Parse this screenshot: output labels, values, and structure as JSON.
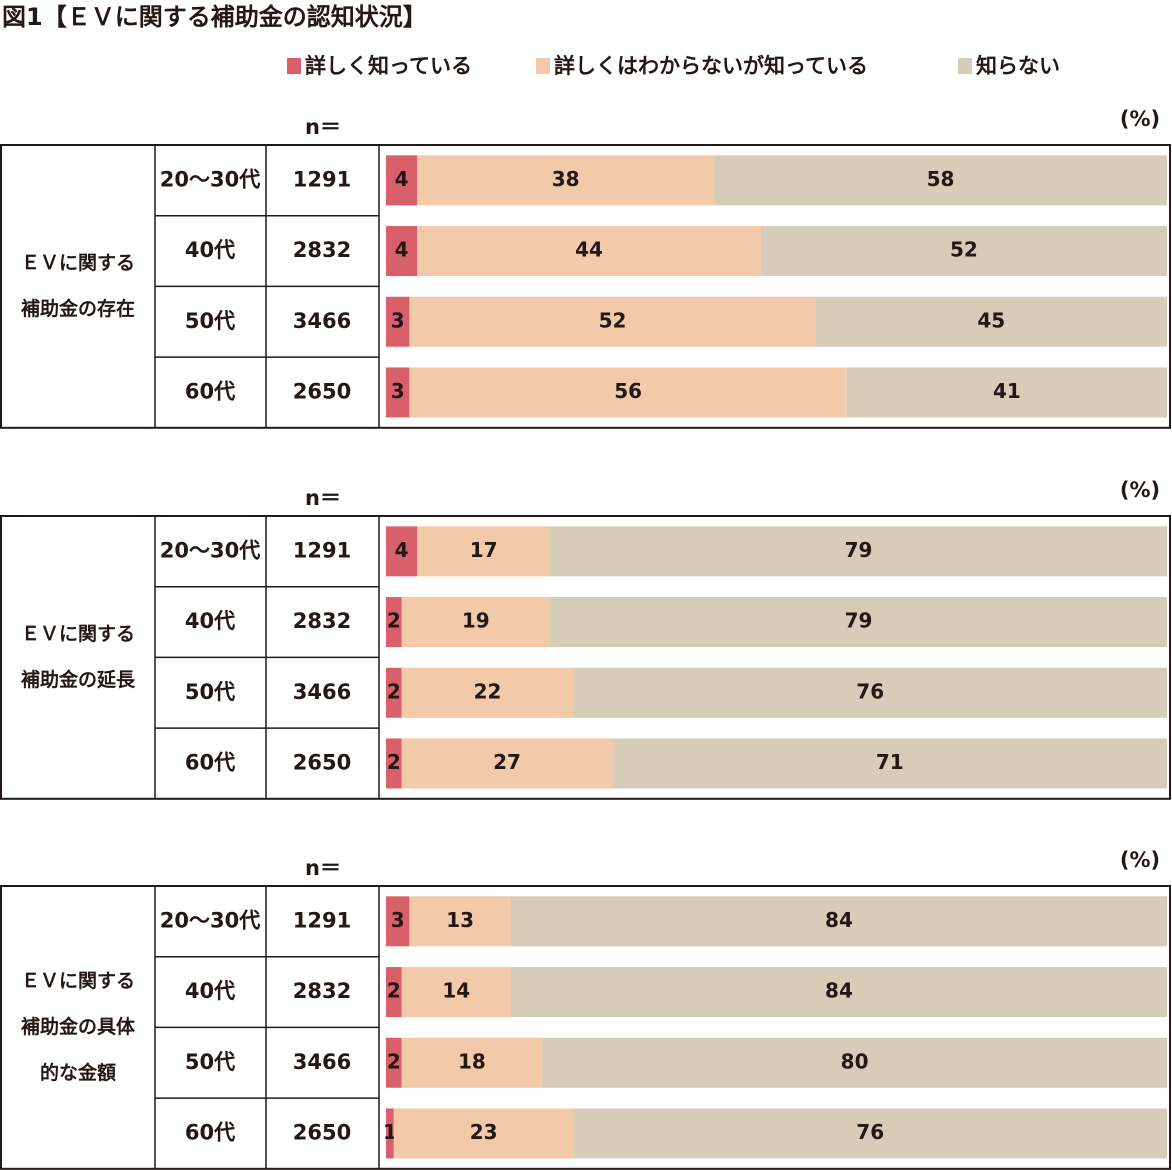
{
  "title": "図1【ＥＶに関する補助金の認知状況】",
  "legend": [
    {
      "name": "詳しく知っている",
      "color": "#d9606a"
    },
    {
      "name": "詳しくはわからないが知っている",
      "color": "#f2c9a9"
    },
    {
      "name": "知らない",
      "color": "#d6cdb8"
    }
  ],
  "chart_data": [
    {
      "type": "bar",
      "n_header": "n＝",
      "unit": "(%)",
      "group_label": [
        "ＥＶに関する",
        "補助金の存在"
      ],
      "categories": [
        "20～30代",
        "40代",
        "50代",
        "60代"
      ],
      "n": [
        1291,
        2832,
        3466,
        2650
      ],
      "xlim": [
        0,
        100
      ],
      "series": [
        {
          "values": [
            4,
            4,
            3,
            3
          ]
        },
        {
          "values": [
            38,
            44,
            52,
            56
          ]
        },
        {
          "values": [
            58,
            52,
            45,
            41
          ]
        }
      ]
    },
    {
      "type": "bar",
      "n_header": "n＝",
      "unit": "(%)",
      "group_label": [
        "ＥＶに関する",
        "補助金の延長"
      ],
      "categories": [
        "20～30代",
        "40代",
        "50代",
        "60代"
      ],
      "n": [
        1291,
        2832,
        3466,
        2650
      ],
      "xlim": [
        0,
        100
      ],
      "series": [
        {
          "values": [
            4,
            2,
            2,
            2
          ]
        },
        {
          "values": [
            17,
            19,
            22,
            27
          ]
        },
        {
          "values": [
            79,
            79,
            76,
            71
          ]
        }
      ]
    },
    {
      "type": "bar",
      "n_header": "n＝",
      "unit": "(%)",
      "group_label": [
        "ＥＶに関する",
        "補助金の具体",
        "的な金額"
      ],
      "categories": [
        "20～30代",
        "40代",
        "50代",
        "60代"
      ],
      "n": [
        1291,
        2832,
        3466,
        2650
      ],
      "xlim": [
        0,
        100
      ],
      "series": [
        {
          "values": [
            3,
            2,
            2,
            1
          ]
        },
        {
          "values": [
            13,
            14,
            18,
            23
          ]
        },
        {
          "values": [
            84,
            84,
            80,
            76
          ]
        }
      ]
    }
  ]
}
